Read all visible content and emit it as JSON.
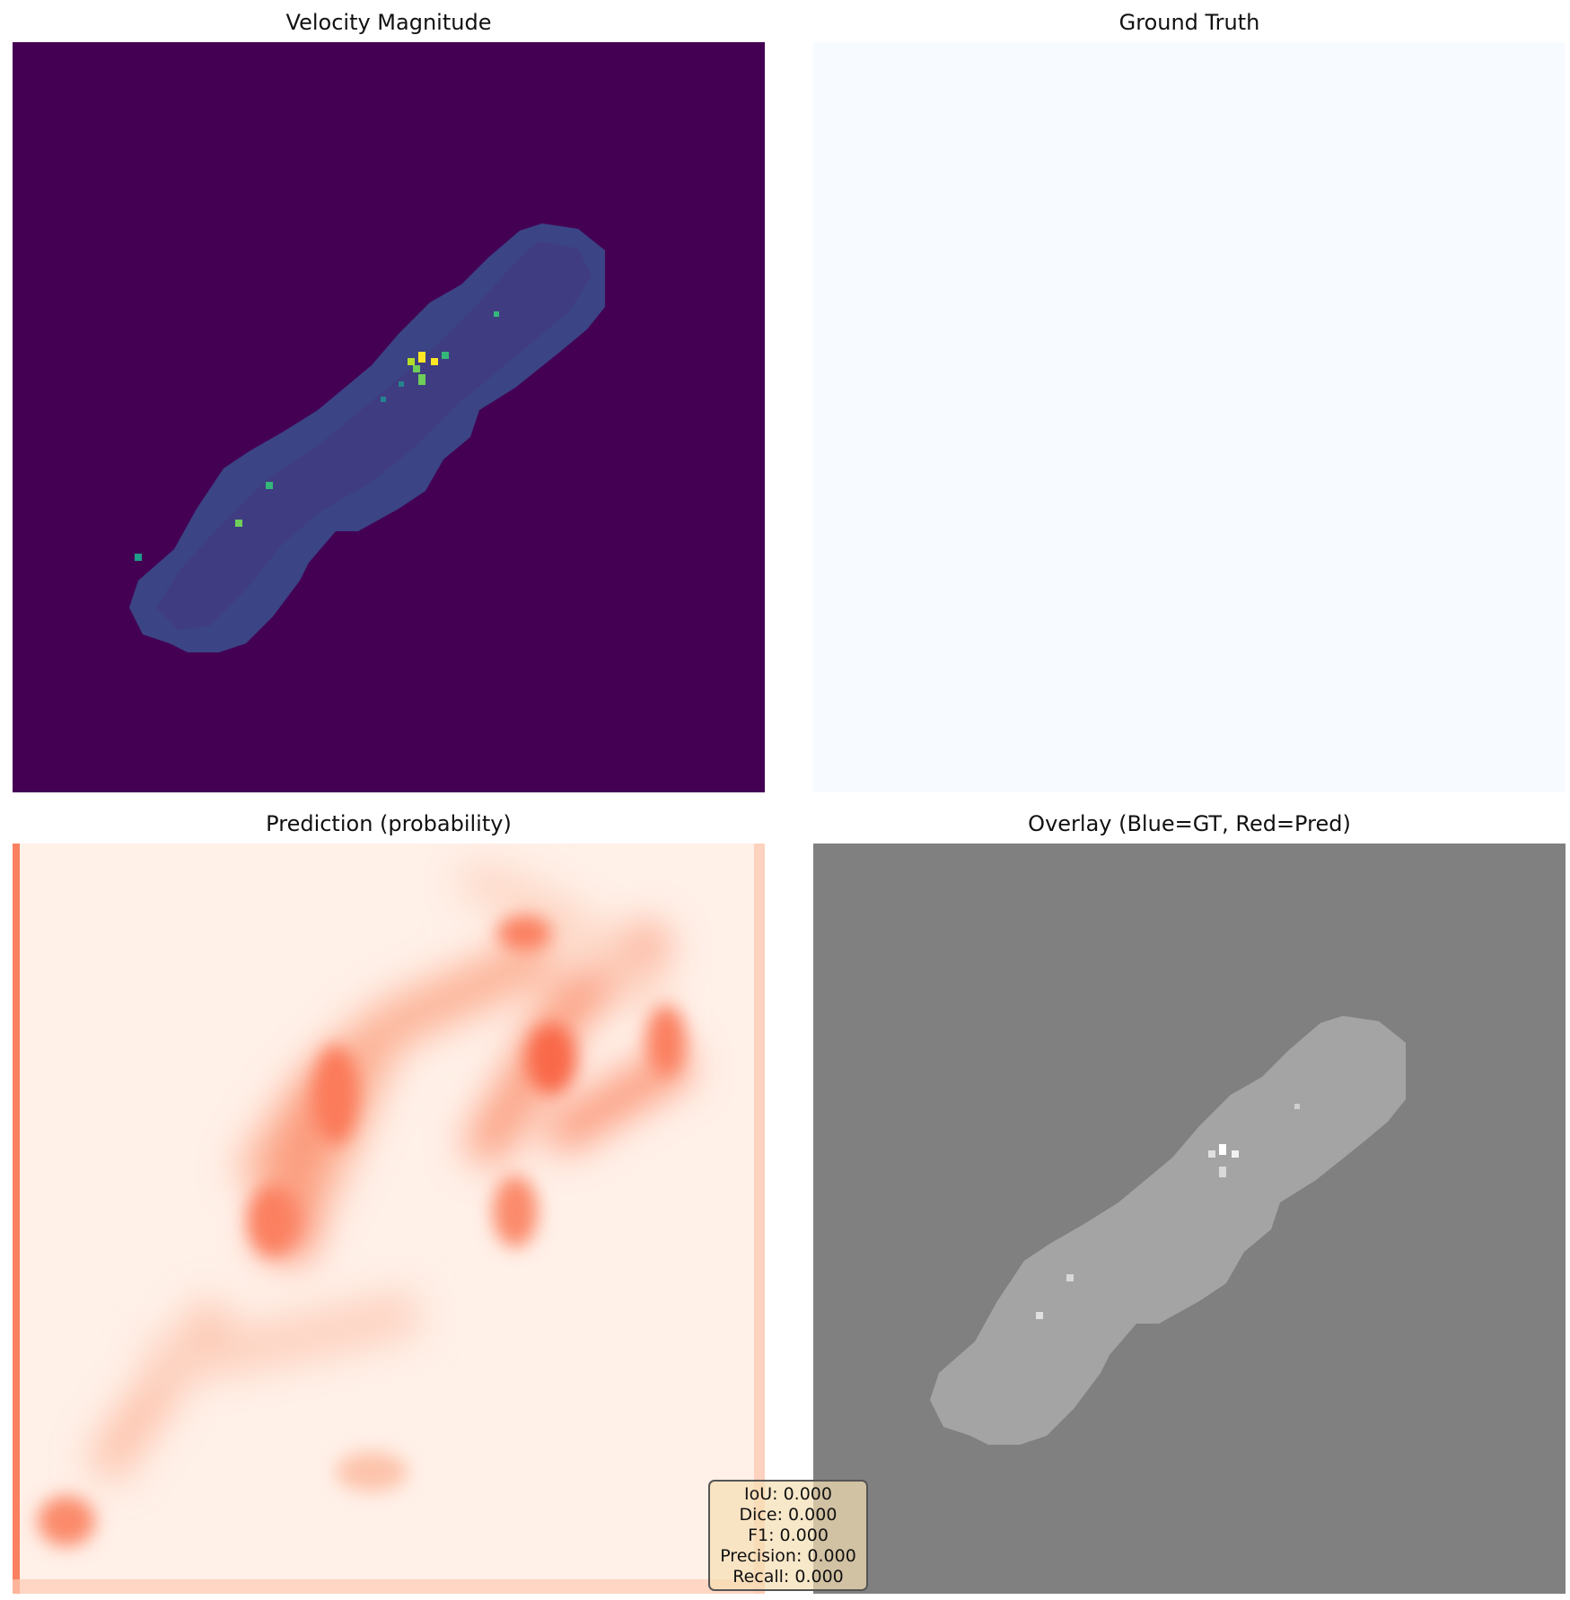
{
  "chart_data": [
    {
      "type": "heatmap",
      "title": "Velocity Magnitude",
      "colormap": "viridis",
      "axis": "off"
    },
    {
      "type": "heatmap",
      "title": "Ground Truth",
      "colormap": "Blues",
      "axis": "off",
      "values": "all zero"
    },
    {
      "type": "heatmap",
      "title": "Prediction (probability)",
      "colormap": "Reds",
      "axis": "off"
    },
    {
      "type": "heatmap",
      "title": "Overlay (Blue=GT, Red=Pred)",
      "colormap": "gray",
      "axis": "off"
    }
  ],
  "metrics": [
    "IoU: 0.000",
    "Dice: 0.000",
    "F1: 0.000",
    "Precision: 0.000",
    "Recall: 0.000"
  ],
  "colors": {
    "viridis_bg": "#440154",
    "viridis_cell": "#3b4a8a",
    "viridis_high": "#fde725",
    "viridis_mid": "#35b779",
    "blues_low": "#f7fbff",
    "reds_low": "#fff5f0",
    "reds_mid": "#fc8d6a",
    "gray_bg": "#808080",
    "gray_cell": "#a8a8a8"
  }
}
